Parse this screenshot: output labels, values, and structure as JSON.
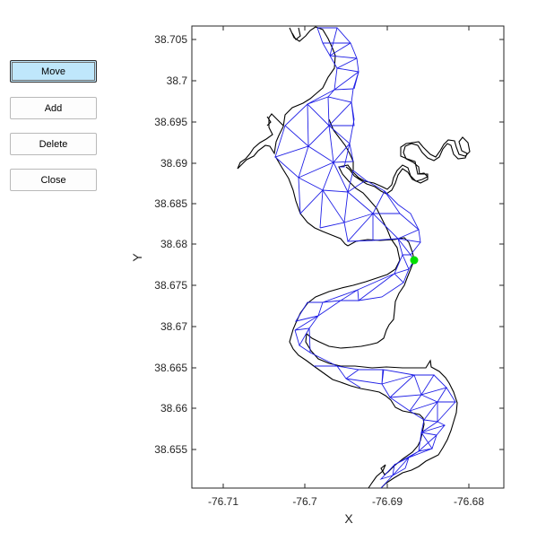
{
  "toolbar": {
    "buttons": [
      {
        "label": "Move",
        "active": true
      },
      {
        "label": "Add",
        "active": false
      },
      {
        "label": "Delete",
        "active": false
      },
      {
        "label": "Close",
        "active": false
      }
    ]
  },
  "plot": {
    "xlabel": "X",
    "ylabel": "Y",
    "xticks": [
      "-76.71",
      "-76.7",
      "-76.69",
      "-76.68"
    ],
    "yticks": [
      "38.705",
      "38.7",
      "38.695",
      "38.69",
      "38.685",
      "38.68",
      "38.675",
      "38.67",
      "38.665",
      "38.66",
      "38.655"
    ],
    "colors": {
      "mesh": "#1f1fe6",
      "shoreline": "#000000",
      "selected_node": "#00dd00"
    }
  },
  "chart_data": {
    "type": "scatter",
    "title": "",
    "xlabel": "X",
    "ylabel": "Y",
    "xlim": [
      -76.7145,
      -76.6765
    ],
    "ylim": [
      38.6502,
      38.7068
    ],
    "grid": false,
    "selected_node": {
      "x": -76.6867,
      "y": 38.6781
    }
  }
}
